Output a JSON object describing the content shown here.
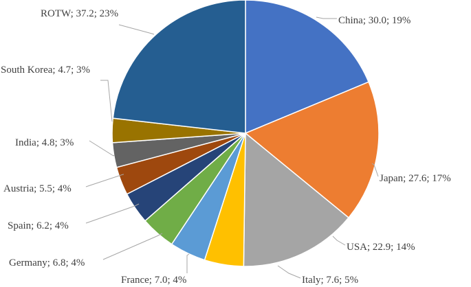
{
  "chart_data": {
    "type": "pie",
    "title": "",
    "slices": [
      {
        "label": "China",
        "value": 30.0,
        "percent": "19%",
        "text": "China; 30.0; 19%",
        "color": "#4472C4"
      },
      {
        "label": "Japan",
        "value": 27.6,
        "percent": "17%",
        "text": "Japan; 27.6; 17%",
        "color": "#ED7D31"
      },
      {
        "label": "USA",
        "value": 22.9,
        "percent": "14%",
        "text": "USA; 22.9; 14%",
        "color": "#A5A5A5"
      },
      {
        "label": "Italy",
        "value": 7.6,
        "percent": "5%",
        "text": "Italy; 7.6; 5%",
        "color": "#FFC000"
      },
      {
        "label": "France",
        "value": 7.0,
        "percent": "4%",
        "text": "France; 7.0; 4%",
        "color": "#5B9BD5"
      },
      {
        "label": "Germany",
        "value": 6.8,
        "percent": "4%",
        "text": "Germany; 6.8; 4%",
        "color": "#70AD47"
      },
      {
        "label": "Spain",
        "value": 6.2,
        "percent": "4%",
        "text": "Spain; 6.2; 4%",
        "color": "#264478"
      },
      {
        "label": "Austria",
        "value": 5.5,
        "percent": "4%",
        "text": "Austria; 5.5; 4%",
        "color": "#9E480E"
      },
      {
        "label": "India",
        "value": 4.8,
        "percent": "3%",
        "text": "India; 4.8; 3%",
        "color": "#636363"
      },
      {
        "label": "South Korea",
        "value": 4.7,
        "percent": "3%",
        "text": "South Korea; 4.7; 3%",
        "color": "#997300"
      },
      {
        "label": "ROTW",
        "value": 37.2,
        "percent": "23%",
        "text": "ROTW; 37.2; 23%",
        "color": "#255E91"
      }
    ],
    "legend": "none",
    "start_angle": "12 o'clock",
    "direction": "clockwise"
  }
}
